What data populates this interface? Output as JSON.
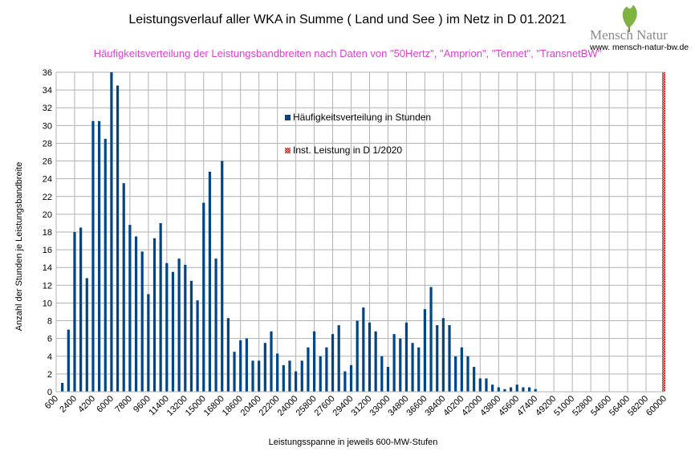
{
  "header": {
    "title": "Leistungsverlauf aller WKA in Summe ( Land und See ) im Netz in D 01.2021",
    "subtitle": "Häufigkeitsverteilung der Leistungsbandbreiten nach Daten von \"50Hertz\", \"Amprion\", \"Tennet\", \"TransnetBW\""
  },
  "logo": {
    "text": "Mensch Natur",
    "url": "www. mensch-natur-bw.de",
    "icon": "ginkgo-leaf-icon"
  },
  "chart_data": {
    "type": "bar",
    "xlabel": "Leistungsspanne in jeweils  600-MW-Stufen",
    "ylabel": "Anzahl der Stunden je Leistungsbandbreite",
    "ylim": [
      0,
      36
    ],
    "yticks": [
      0,
      2,
      4,
      6,
      8,
      10,
      12,
      14,
      16,
      18,
      20,
      22,
      24,
      26,
      28,
      30,
      32,
      34,
      36
    ],
    "xticks": [
      "600",
      "2400",
      "4200",
      "6000",
      "7800",
      "9600",
      "11400",
      "13200",
      "15000",
      "16800",
      "18600",
      "20400",
      "22200",
      "24000",
      "25800",
      "27600",
      "29400",
      "31200",
      "33000",
      "34800",
      "36600",
      "38400",
      "40200",
      "42000",
      "43800",
      "45600",
      "47400",
      "49200",
      "51000",
      "52800",
      "54600",
      "56400",
      "58200",
      "60000"
    ],
    "grid": "horizontal and vertical",
    "series": [
      {
        "name": "Häufigkeitsverteilung in Stunden",
        "color": "#004586",
        "x": [
          1200,
          1800,
          2400,
          3000,
          3600,
          4200,
          4800,
          5400,
          6000,
          6600,
          7200,
          7800,
          8400,
          9000,
          9600,
          10200,
          10800,
          11400,
          12000,
          12600,
          13200,
          13800,
          14400,
          15000,
          15600,
          16200,
          16800,
          17400,
          18000,
          18600,
          19200,
          19800,
          20400,
          21000,
          21600,
          22200,
          22800,
          23400,
          24000,
          24600,
          25200,
          25800,
          26400,
          27000,
          27600,
          28200,
          28800,
          29400,
          30000,
          30600,
          31200,
          31800,
          32400,
          33000,
          33600,
          34200,
          34800,
          35400,
          36000,
          36600,
          37200,
          37800,
          38400,
          39000,
          39600,
          40200,
          40800,
          41400,
          42000,
          42600,
          43200,
          43800,
          44400,
          45000,
          45600,
          46200,
          46800,
          47400
        ],
        "values": [
          1,
          7,
          18,
          18.5,
          12.8,
          30.5,
          30.5,
          28.5,
          36,
          34.5,
          23.5,
          18.8,
          17.5,
          15.8,
          11,
          17.3,
          19,
          14.5,
          13.5,
          15,
          14.3,
          12.5,
          10.3,
          21.3,
          24.8,
          15,
          26,
          8.3,
          4.5,
          5.8,
          6,
          3.5,
          3.5,
          5.5,
          6.8,
          4.3,
          3,
          3.5,
          2.3,
          3.5,
          5,
          6.8,
          4,
          5,
          6.5,
          7.5,
          2.3,
          3,
          8,
          9.5,
          7.8,
          6.8,
          4,
          2.8,
          6.5,
          6,
          7.8,
          5.5,
          5,
          9.3,
          11.8,
          7.5,
          8.3,
          7.5,
          4,
          5,
          4,
          2.8,
          1.5,
          1.5,
          0.8,
          0.5,
          0.3,
          0.5,
          0.8,
          0.5,
          0.5,
          0.3
        ]
      },
      {
        "name": "Inst. Leistung in D 1/2020",
        "color": "#c9211e",
        "x": [
          60000
        ],
        "values": [
          36
        ]
      }
    ],
    "legend_placement": "top-center"
  }
}
